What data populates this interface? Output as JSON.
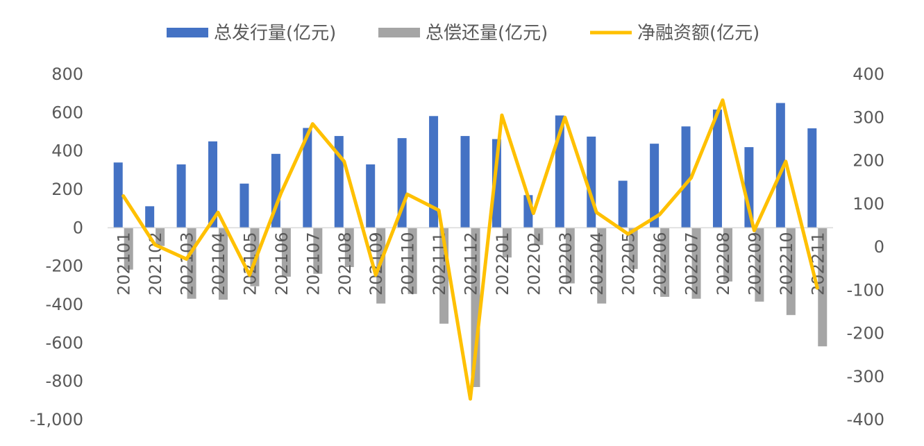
{
  "chart_data": {
    "type": "bar",
    "categories": [
      "202101",
      "202102",
      "202103",
      "202104",
      "202105",
      "202106",
      "202107",
      "202108",
      "202109",
      "202110",
      "202111",
      "202112",
      "202201",
      "202202",
      "202203",
      "202204",
      "202205",
      "202206",
      "202207",
      "202208",
      "202209",
      "202210",
      "202211"
    ],
    "series": [
      {
        "name": "总发行量(亿元)",
        "kind": "bar",
        "axis": "left",
        "color": "#4472C4",
        "values": [
          340,
          112,
          330,
          450,
          230,
          385,
          520,
          478,
          330,
          467,
          582,
          478,
          462,
          170,
          585,
          475,
          245,
          438,
          528,
          616,
          420,
          650,
          518
        ]
      },
      {
        "name": "总偿还量(亿元)",
        "kind": "bar",
        "axis": "left",
        "color": "#A5A5A5",
        "values": [
          -218,
          -95,
          -370,
          -375,
          -305,
          -255,
          -240,
          -205,
          -395,
          -345,
          -500,
          -830,
          -155,
          -90,
          -290,
          -395,
          -215,
          -360,
          -370,
          -280,
          -385,
          -455,
          -618
        ]
      },
      {
        "name": "净融资额(亿元)",
        "kind": "line",
        "axis": "right",
        "color": "#FFC000",
        "values": [
          118,
          5,
          -28,
          80,
          -65,
          125,
          285,
          198,
          -65,
          122,
          85,
          -352,
          305,
          78,
          300,
          80,
          30,
          75,
          160,
          340,
          38,
          198,
          -95
        ]
      }
    ],
    "yAxisLeft": {
      "min": -1000,
      "max": 800,
      "step": 200,
      "tick_labels": [
        "800",
        "600",
        "400",
        "200",
        "0",
        "-200",
        "-400",
        "-600",
        "-800",
        "-1,000"
      ]
    },
    "yAxisRight": {
      "min": -400,
      "max": 400,
      "step": 100,
      "tick_labels": [
        "400",
        "300",
        "200",
        "100",
        "0",
        "-100",
        "-200",
        "-300",
        "-400"
      ]
    },
    "grid": false,
    "legend": "top-center"
  }
}
